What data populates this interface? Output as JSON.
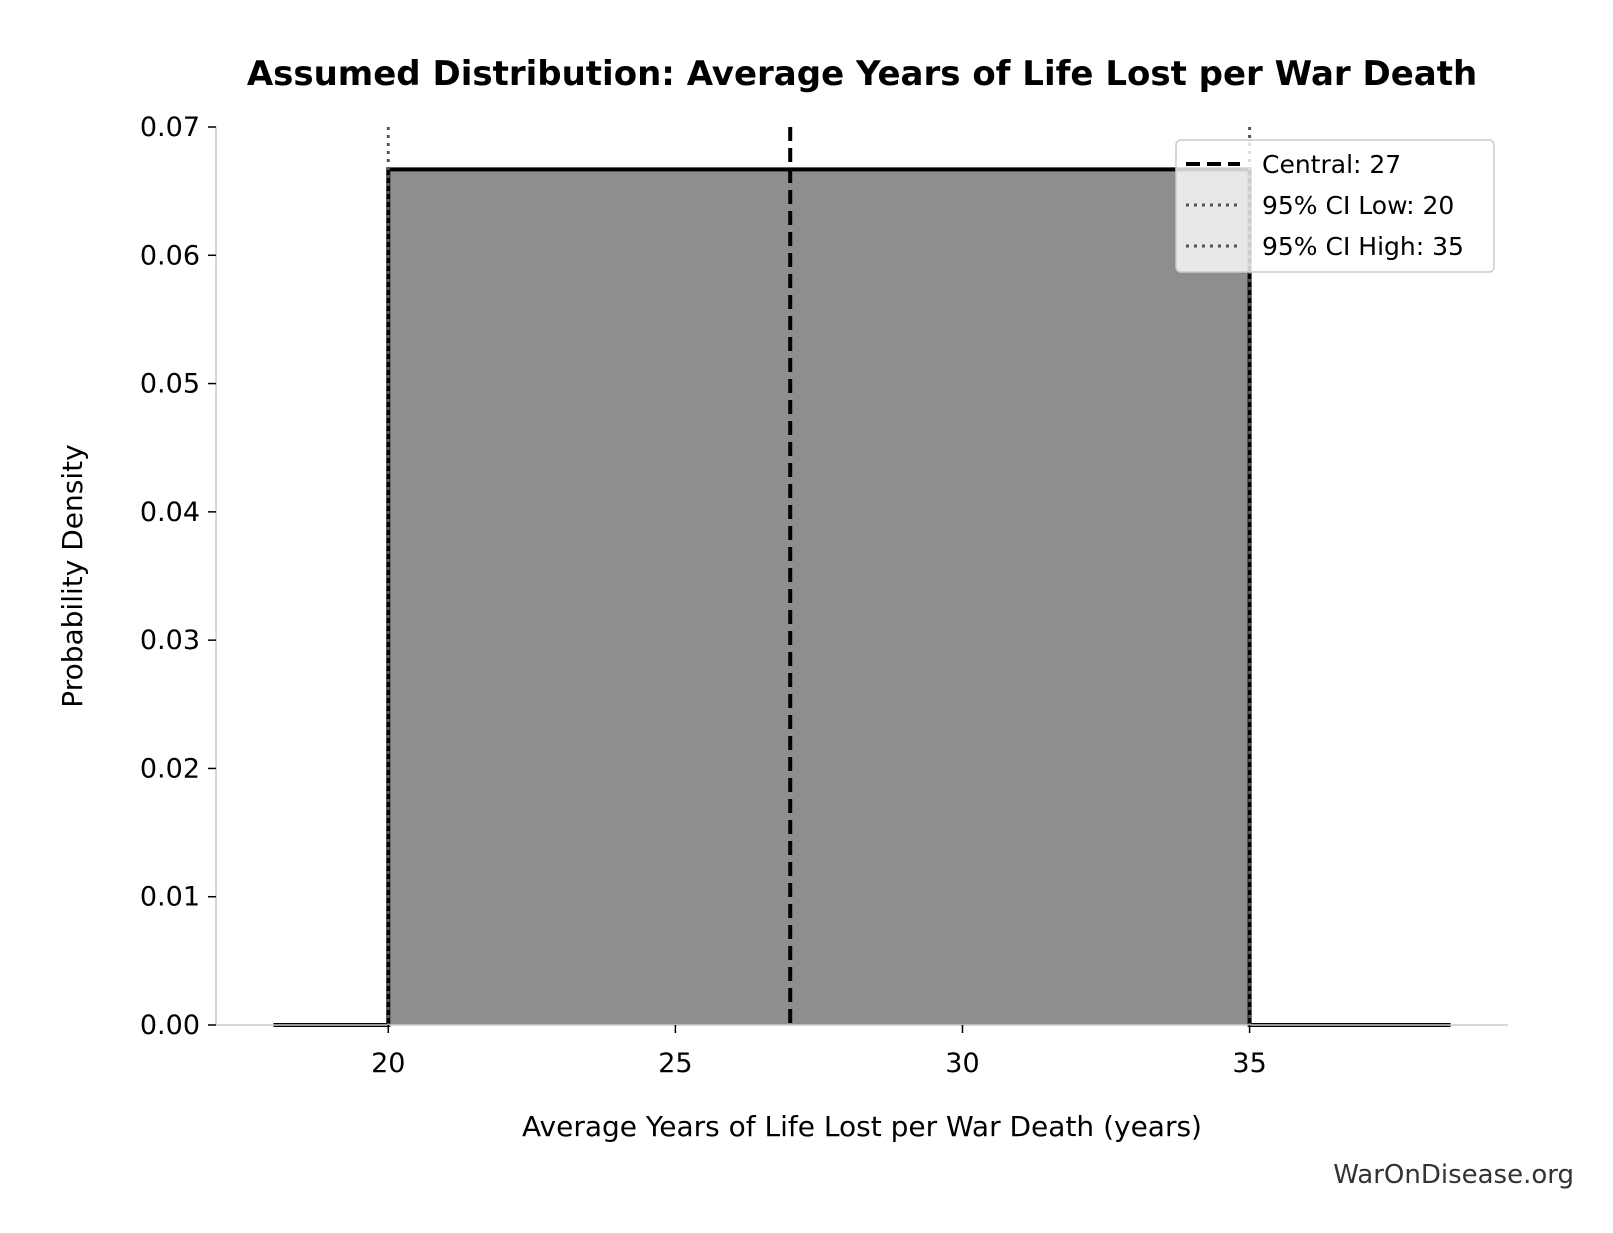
{
  "chart_data": {
    "type": "area",
    "title": "Assumed Distribution: Average Years of Life Lost per War Death",
    "xlabel": "Average Years of Life Lost per War Death (years)",
    "ylabel": "Probability Density",
    "xlim": [
      17,
      39.5
    ],
    "ylim": [
      0,
      0.07
    ],
    "x_ticks": [
      20,
      25,
      30,
      35
    ],
    "x_tick_labels": [
      "20",
      "25",
      "30",
      "35"
    ],
    "y_ticks": [
      0,
      0.01,
      0.02,
      0.03,
      0.04,
      0.05,
      0.06,
      0.07
    ],
    "y_tick_labels": [
      "0.00",
      "0.01",
      "0.02",
      "0.03",
      "0.04",
      "0.05",
      "0.06",
      "0.07"
    ],
    "grid": false,
    "legend_position": "top-right",
    "series": [
      {
        "x": [
          18,
          20,
          20,
          35,
          35,
          38.5
        ],
        "y": [
          0,
          0,
          0.0667,
          0.0667,
          0,
          0
        ],
        "fill_color": "#8e8e8e",
        "line_color": "#000000"
      }
    ],
    "reference_lines": [
      {
        "label": "Central: 27",
        "x": 27,
        "style": "dashed",
        "color": "#000000"
      },
      {
        "label": "95% CI Low: 20",
        "x": 20,
        "style": "dotted",
        "color": "#555555"
      },
      {
        "label": "95% CI High: 35",
        "x": 35,
        "style": "dotted",
        "color": "#555555"
      }
    ]
  },
  "footer": {
    "watermark": "WarOnDisease.org"
  }
}
